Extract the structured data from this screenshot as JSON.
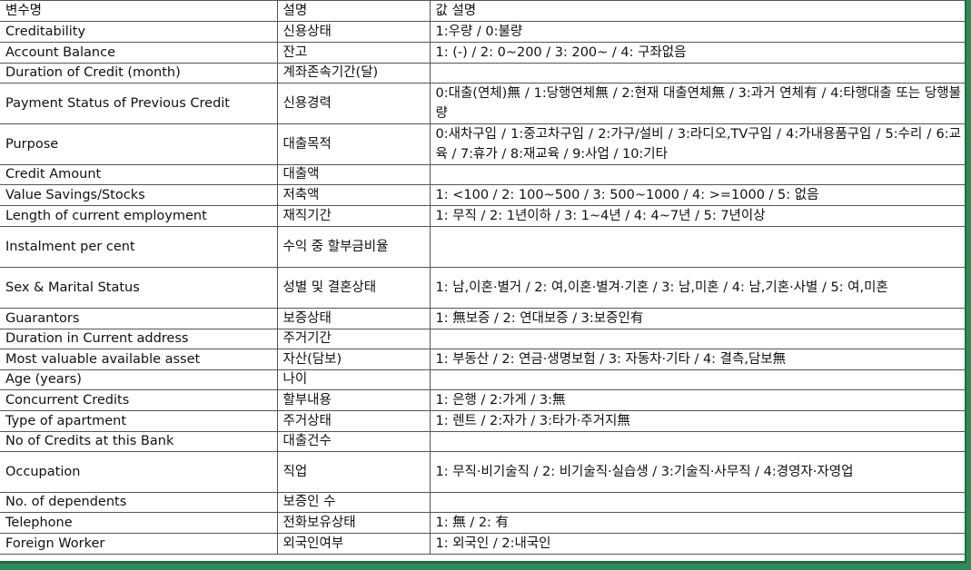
{
  "header": {
    "name": "변수명",
    "desc": "설명",
    "values": "값 설명"
  },
  "rows": [
    {
      "name": "Creditability",
      "desc": "신용상태",
      "values": "1:우량 / 0:불량",
      "tall": false
    },
    {
      "name": "Account Balance",
      "desc": "잔고",
      "values": "1: (-) / 2: 0~200 / 3: 200~ / 4: 구좌없음",
      "tall": false
    },
    {
      "name": "Duration of Credit (month)",
      "desc": "계좌존속기간(달)",
      "values": "",
      "tall": false
    },
    {
      "name": "Payment Status of Previous Credit",
      "desc": "신용경력",
      "values": "0:대출(연체)無 / 1:당행연체無 / 2:현재 대출연체無 / 3:과거 연체有 / 4:타행대출 또는 당행불량",
      "tall": true
    },
    {
      "name": "Purpose",
      "desc": "대출목적",
      "values": "0:새차구입 / 1:중고차구입 / 2:가구/설비 / 3:라디오,TV구입 / 4:가내용품구입 / 5:수리 / 6:교육 / 7:휴가 / 8:재교육 / 9:사업 / 10:기타",
      "tall": true
    },
    {
      "name": "Credit Amount",
      "desc": "대출액",
      "values": "",
      "tall": false
    },
    {
      "name": "Value Savings/Stocks",
      "desc": "저축액",
      "values": "1: <100 / 2: 100~500 / 3: 500~1000 / 4: >=1000 / 5: 없음",
      "tall": false
    },
    {
      "name": "Length of current employment",
      "desc": "재직기간",
      "values": "1: 무직 / 2: 1년이하 / 3: 1~4년 / 4: 4~7년 / 5: 7년이상",
      "tall": false
    },
    {
      "name": "Instalment per cent",
      "desc": "수익 중 할부금비율",
      "values": "",
      "tall": true
    },
    {
      "name": "Sex & Marital Status",
      "desc": "성별 및 결혼상태",
      "values": "1: 남,이혼·별거 / 2: 여,이혼·별겨·기혼 / 3: 남,미혼 / 4: 남,기혼·사별 / 5: 여,미혼",
      "tall": true
    },
    {
      "name": "Guarantors",
      "desc": "보증상태",
      "values": "1: 無보증 / 2: 연대보증 / 3:보증인有",
      "tall": false
    },
    {
      "name": "Duration in Current address",
      "desc": "주거기간",
      "values": "",
      "tall": false
    },
    {
      "name": "Most valuable available asset",
      "desc": "자산(담보)",
      "values": "1: 부동산 / 2: 연금·생명보험 / 3: 자동차·기타 / 4: 결측,담보無",
      "tall": false
    },
    {
      "name": "Age (years)",
      "desc": "나이",
      "values": "",
      "tall": false
    },
    {
      "name": "Concurrent Credits",
      "desc": "할부내용",
      "values": "1: 은행 / 2:가게 / 3:無",
      "tall": false
    },
    {
      "name": "Type of apartment",
      "desc": "주거상태",
      "values": "1: 렌트 / 2:자가 / 3:타가·주거지無",
      "tall": false
    },
    {
      "name": "No of Credits at this Bank",
      "desc": "대출건수",
      "values": "",
      "tall": false
    },
    {
      "name": "Occupation",
      "desc": "직업",
      "values": "1: 무직·비기술직 / 2: 비기술직·실습생 / 3:기술직·사무직 / 4:경영자·자영업",
      "tall": true
    },
    {
      "name": "No. of dependents",
      "desc": "보증인 수",
      "values": "",
      "tall": false
    },
    {
      "name": "Telephone",
      "desc": "전화보유상태",
      "values": "1: 無 / 2: 有",
      "tall": false
    },
    {
      "name": "Foreign Worker",
      "desc": "외국인여부",
      "values": "1: 외국인 / 2:내국인",
      "tall": false
    }
  ]
}
